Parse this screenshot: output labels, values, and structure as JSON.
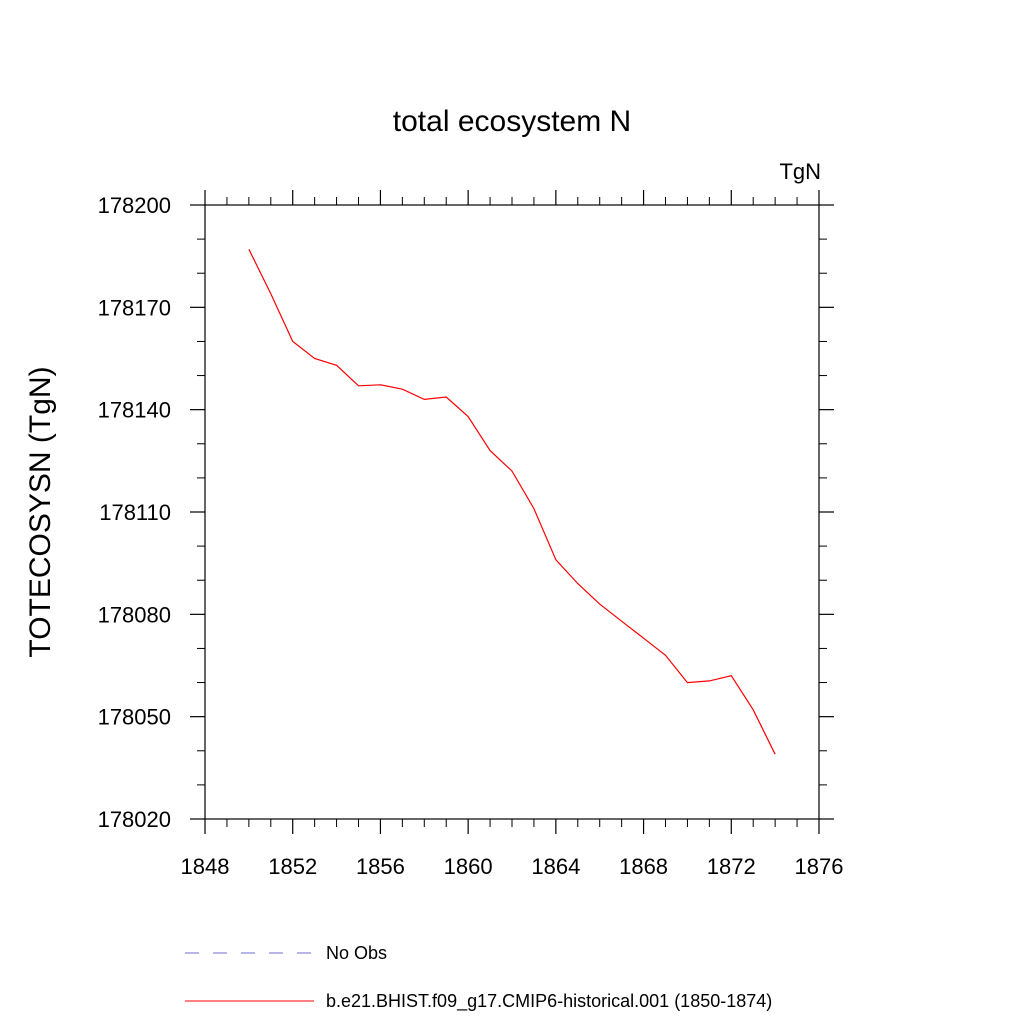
{
  "chart_data": {
    "type": "line",
    "title": "total ecosystem N",
    "units_label": "TgN",
    "xlabel": "",
    "ylabel": "TOTECOSYSN  (TgN)",
    "xlim": [
      1848,
      1876
    ],
    "ylim": [
      178020,
      178200
    ],
    "x_ticks": [
      1848,
      1852,
      1856,
      1860,
      1864,
      1868,
      1872,
      1876
    ],
    "y_ticks": [
      178020,
      178050,
      178080,
      178110,
      178140,
      178170,
      178200
    ],
    "x_minor_step": 1,
    "y_minor_step": 10,
    "grid": false,
    "legend_position": "bottom",
    "series": [
      {
        "name": "No Obs",
        "color": "#6c6cd0",
        "style": "dashed",
        "x": [],
        "y": []
      },
      {
        "name": "b.e21.BHIST.f09_g17.CMIP6-historical.001 (1850-1874)",
        "color": "#ff0000",
        "style": "solid",
        "x": [
          1850,
          1851,
          1852,
          1853,
          1854,
          1855,
          1856,
          1857,
          1858,
          1859,
          1860,
          1861,
          1862,
          1863,
          1864,
          1865,
          1866,
          1867,
          1868,
          1869,
          1870,
          1871,
          1872,
          1873,
          1874
        ],
        "y": [
          178187,
          178174,
          178160,
          178155,
          178153,
          178147,
          178147.3,
          178146,
          178143,
          178143.7,
          178138,
          178128,
          178122,
          178111,
          178096,
          178089,
          178083,
          178078,
          178073,
          178068,
          178060,
          178060.5,
          178062,
          178052,
          178039
        ]
      }
    ]
  }
}
